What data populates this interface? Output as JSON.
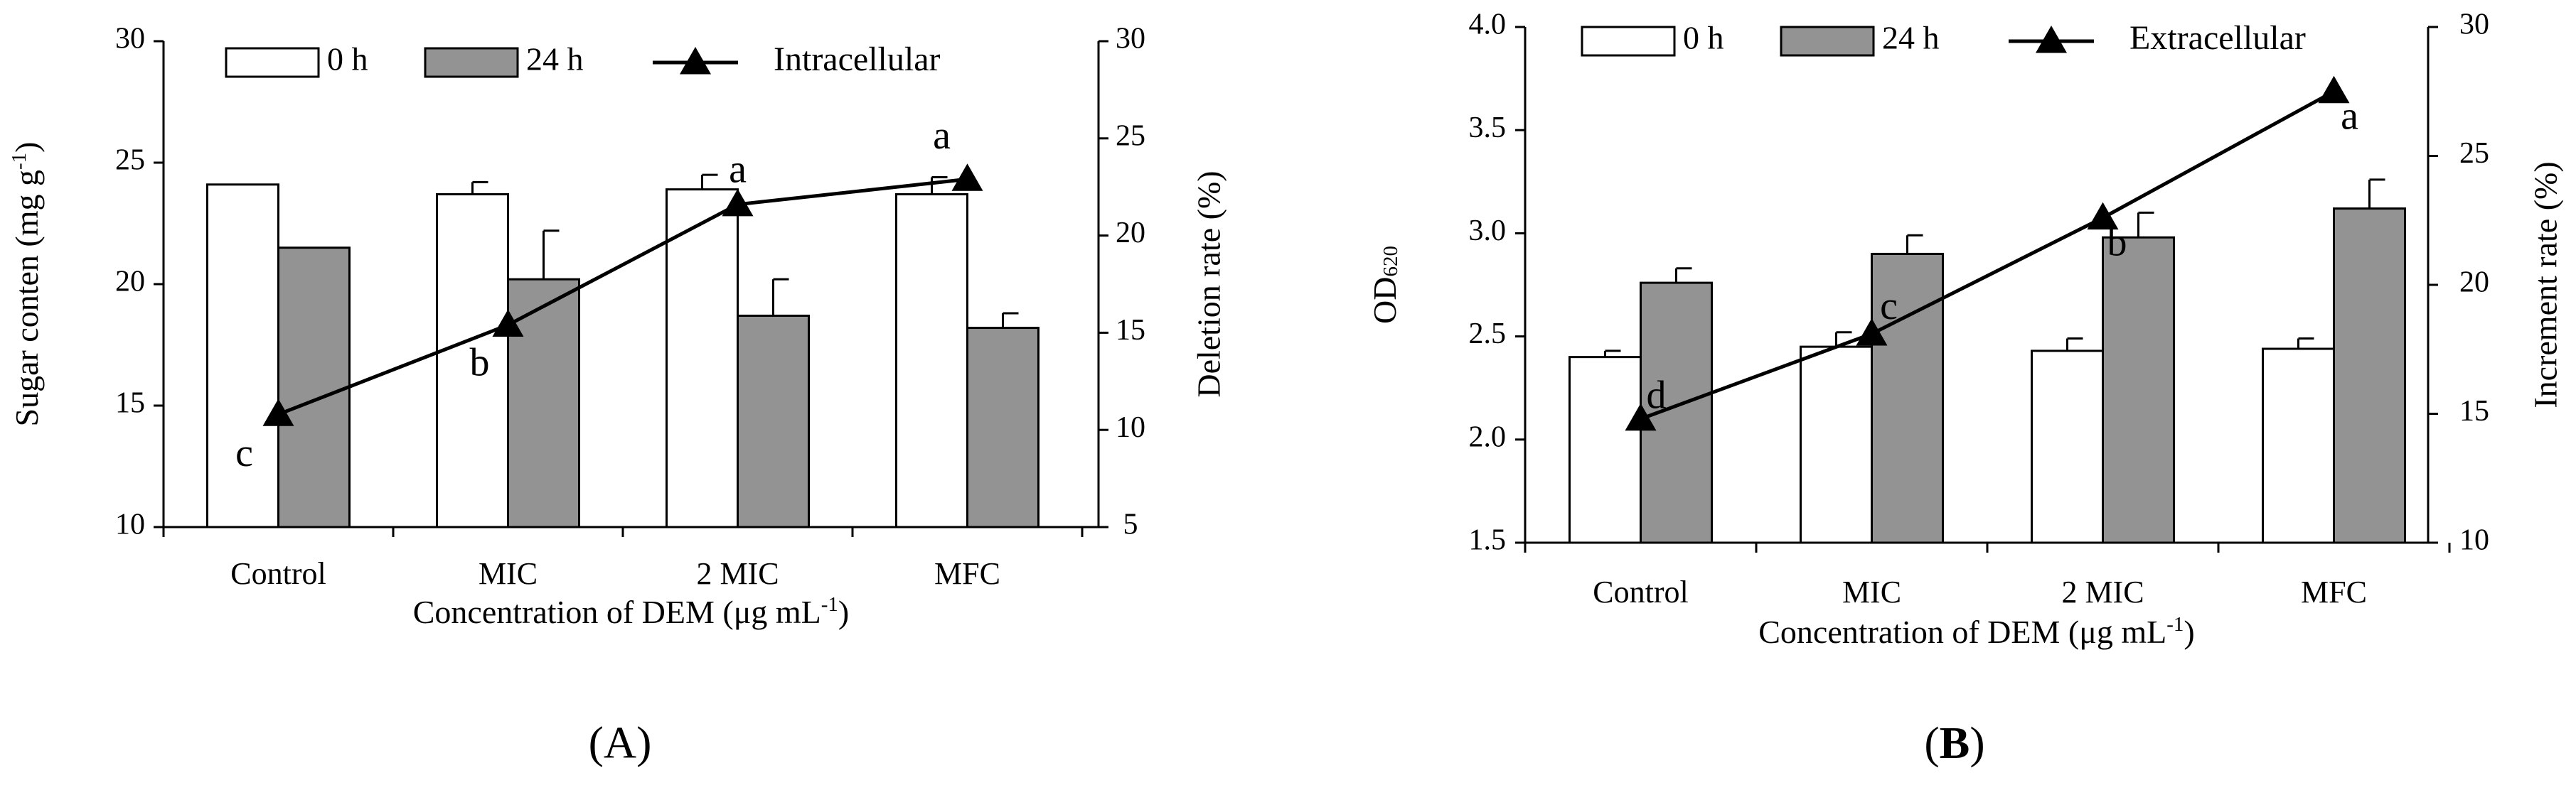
{
  "chart_data": [
    {
      "panel_label": "(A)",
      "type": "bar",
      "categories": [
        "Control",
        "MIC",
        "2 MIC",
        "MFC"
      ],
      "xlabel": "Concentration of DEM (μg mL⁻¹)",
      "ylabel": "Sugar conten (mg g⁻¹)",
      "y2label": "Deletion rate (%)",
      "ylim": [
        10,
        30
      ],
      "yticks": [
        10,
        15,
        20,
        25,
        30
      ],
      "y2lim": [
        5,
        30
      ],
      "y2ticks": [
        5,
        10,
        15,
        20,
        25,
        30
      ],
      "series": [
        {
          "name": "0 h",
          "kind": "bar",
          "color": "#ffffff",
          "values": [
            24.1,
            23.7,
            23.9,
            23.7
          ],
          "errors": [
            0.0,
            0.5,
            0.6,
            0.7
          ]
        },
        {
          "name": "24 h",
          "kind": "bar",
          "color": "#939393",
          "values": [
            21.5,
            20.2,
            18.7,
            18.2
          ],
          "errors": [
            0.0,
            2.0,
            1.5,
            0.6
          ]
        },
        {
          "name": "Intracellular",
          "kind": "line",
          "axis": "y2",
          "color": "#000000",
          "values": [
            10.8,
            15.4,
            21.6,
            22.9
          ],
          "labels": [
            "c",
            "b",
            "a",
            "a"
          ]
        }
      ]
    },
    {
      "panel_label": "(B)",
      "type": "bar",
      "categories": [
        "Control",
        "MIC",
        "2 MIC",
        "MFC"
      ],
      "xlabel": "Concentration of DEM (μg mL⁻¹)",
      "ylabel": "OD620",
      "y2label": "Increment rate (%)",
      "ylim": [
        1.5,
        4.0
      ],
      "yticks": [
        "1.5",
        "2.0",
        "2.5",
        "3.0",
        "3.5",
        "4.0"
      ],
      "y2lim": [
        10,
        30
      ],
      "y2ticks": [
        10,
        15,
        20,
        25,
        30
      ],
      "series": [
        {
          "name": "0 h",
          "kind": "bar",
          "color": "#ffffff",
          "values": [
            2.4,
            2.45,
            2.43,
            2.44
          ],
          "errors": [
            0.03,
            0.07,
            0.06,
            0.05
          ]
        },
        {
          "name": "24 h",
          "kind": "bar",
          "color": "#939393",
          "values": [
            2.76,
            2.9,
            2.98,
            3.12
          ],
          "errors": [
            0.07,
            0.09,
            0.12,
            0.14
          ]
        },
        {
          "name": "Extracellular",
          "kind": "line",
          "axis": "y2",
          "color": "#000000",
          "values": [
            14.8,
            18.1,
            22.6,
            27.5
          ],
          "labels": [
            "d",
            "c",
            "b",
            "a"
          ]
        }
      ]
    }
  ]
}
